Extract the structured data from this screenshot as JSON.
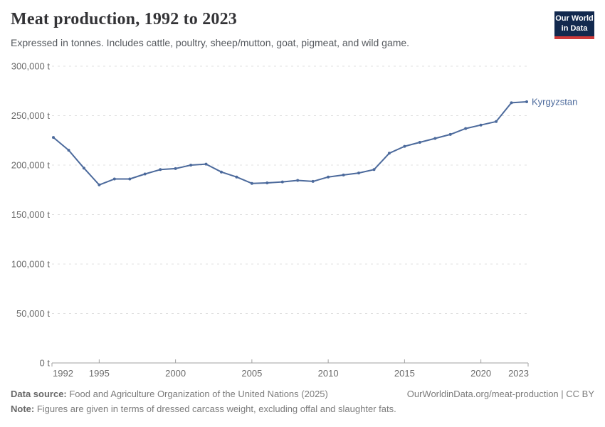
{
  "header": {
    "title": "Meat production, 1992 to 2023",
    "subtitle": "Expressed in tonnes. Includes cattle, poultry, sheep/mutton, goat, pigmeat, and wild game.",
    "logo": {
      "line1": "Our World",
      "line2": "in Data",
      "bg_color": "#12294e",
      "bar_color": "#cf3a3a"
    }
  },
  "chart_data": {
    "type": "line",
    "title": "Meat production, 1992 to 2023",
    "unit": "t",
    "xlim": [
      1992,
      2023
    ],
    "ylim": [
      0,
      300000
    ],
    "grid": "horizontal-dashed",
    "legend_position": "right-end-label",
    "x_ticks": [
      1992,
      1995,
      2000,
      2005,
      2010,
      2015,
      2020,
      2023
    ],
    "x_tick_labels": [
      "1992",
      "1995",
      "2000",
      "2005",
      "2010",
      "2015",
      "2020",
      "2023"
    ],
    "y_ticks": [
      0,
      50000,
      100000,
      150000,
      200000,
      250000,
      300000
    ],
    "y_tick_labels": [
      "0 t",
      "50,000 t",
      "100,000 t",
      "150,000 t",
      "200,000 t",
      "250,000 t",
      "300,000 t"
    ],
    "series": [
      {
        "name": "Kyrgyzstan",
        "color": "#4c6a9c",
        "x": [
          1992,
          1993,
          1994,
          1995,
          1996,
          1997,
          1998,
          1999,
          2000,
          2001,
          2002,
          2003,
          2004,
          2005,
          2006,
          2007,
          2008,
          2009,
          2010,
          2011,
          2012,
          2013,
          2014,
          2015,
          2016,
          2017,
          2018,
          2019,
          2020,
          2021,
          2022,
          2023
        ],
        "values": [
          228000,
          215000,
          197000,
          180000,
          186000,
          186000,
          191000,
          195500,
          196500,
          200000,
          201000,
          193000,
          188000,
          181500,
          182000,
          183000,
          184500,
          183500,
          188000,
          190000,
          192000,
          195500,
          212000,
          219000,
          223000,
          227000,
          231000,
          237000,
          240500,
          244000,
          263000,
          264000
        ]
      }
    ]
  },
  "footer": {
    "datasource_label": "Data source:",
    "datasource_text": " Food and Agriculture Organization of the United Nations (2025)",
    "link_text": "OurWorldinData.org/meat-production | CC BY",
    "note_label": "Note:",
    "note_text": " Figures are given in terms of dressed carcass weight, excluding offal and slaughter fats."
  }
}
